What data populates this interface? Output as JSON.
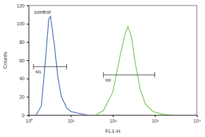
{
  "chart_data": {
    "type": "line",
    "log": "x",
    "x_label": "FL1-H",
    "y_label": "Counts",
    "xlim": [
      1,
      10000
    ],
    "xticks": [
      {
        "value": 1,
        "label": "10⁰"
      },
      {
        "value": 10,
        "label": "10¹"
      },
      {
        "value": 100,
        "label": "10²"
      },
      {
        "value": 1000,
        "label": "10³"
      },
      {
        "value": 10000,
        "label": "10⁴"
      }
    ],
    "ylim": [
      0,
      120
    ],
    "yticks": [
      0,
      20,
      40,
      60,
      80,
      100,
      120
    ],
    "series": [
      {
        "name": "control",
        "color": "#3b5fb4",
        "x": [
          1.5,
          2,
          2.5,
          3,
          3.3,
          4,
          5,
          6,
          8,
          10,
          15,
          25
        ],
        "values": [
          0,
          10,
          60,
          105,
          108,
          80,
          40,
          20,
          8,
          4,
          2,
          0
        ]
      },
      {
        "color": "#6cbf4a",
        "x": [
          40,
          60,
          100,
          150,
          200,
          230,
          280,
          350,
          450,
          600,
          900,
          1500,
          2500
        ],
        "values": [
          0,
          5,
          25,
          65,
          90,
          97,
          85,
          55,
          28,
          12,
          4,
          1,
          0
        ]
      }
    ],
    "gates": [
      {
        "label": "M1",
        "range": [
          1.3,
          8
        ],
        "y": 53
      },
      {
        "label": "M2",
        "range": [
          60,
          1000
        ],
        "y": 44
      }
    ]
  }
}
